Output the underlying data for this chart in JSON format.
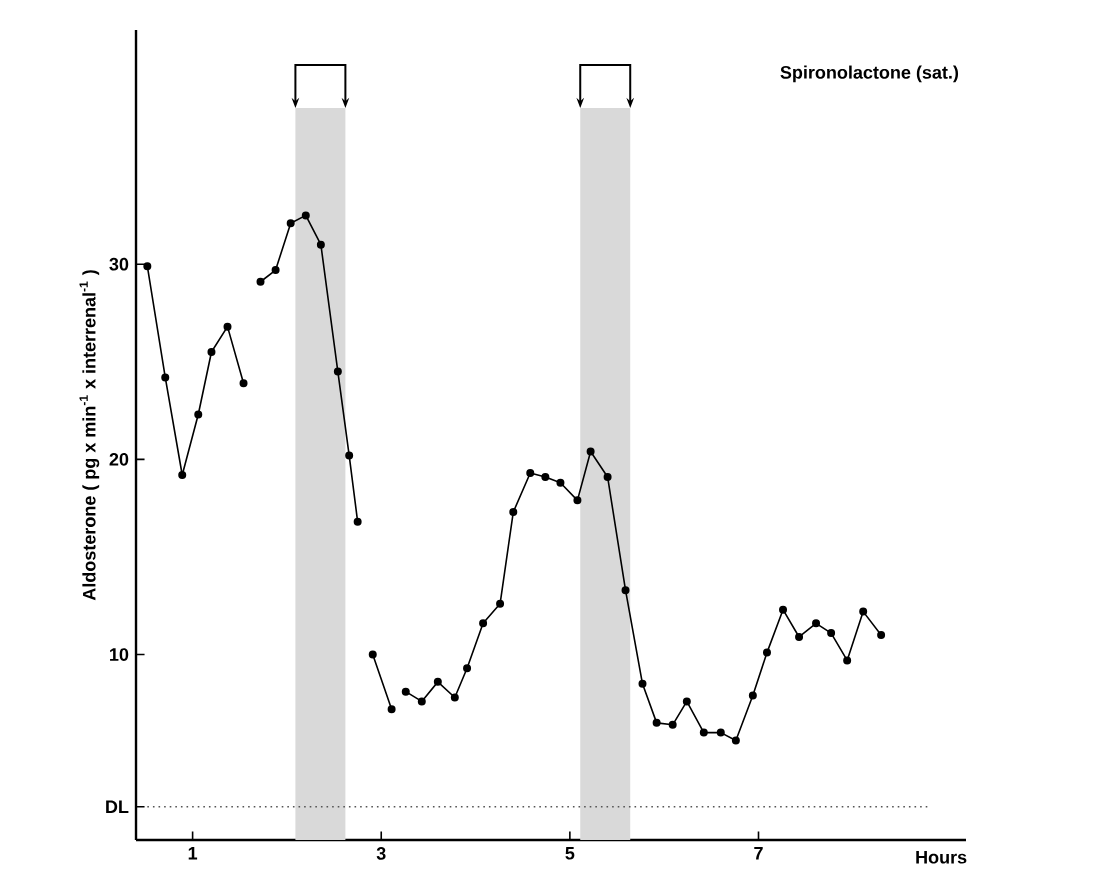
{
  "chart_data": {
    "type": "line",
    "title": "Spironolactone (sat.)",
    "xlabel": "Hours",
    "ylabel": "Aldosterone ( pg x min$^{-1}$ x interrenal$^{-1}$ )",
    "series": [
      {
        "color": "#000000",
        "x": [
          0.52,
          0.71,
          0.89,
          1.06,
          1.2,
          1.37,
          1.54,
          1.63,
          1.72,
          1.88,
          2.04,
          2.2,
          2.36,
          2.54,
          2.66,
          2.75,
          2.83,
          2.91,
          3.11,
          3.18,
          3.26,
          3.43,
          3.6,
          3.78,
          3.91,
          4.08,
          4.26,
          4.4,
          4.58,
          4.74,
          4.9,
          5.08,
          5.22,
          5.4,
          5.59,
          5.77,
          5.92,
          6.09,
          6.24,
          6.42,
          6.6,
          6.76,
          6.94,
          7.09,
          7.26,
          7.43,
          7.61,
          7.77,
          7.94,
          8.11,
          8.3
        ],
        "values": [
          29.9,
          24.2,
          19.2,
          22.3,
          25.5,
          26.8,
          23.9,
          null,
          29.1,
          29.7,
          32.1,
          32.5,
          31.0,
          24.5,
          20.2,
          16.8,
          null,
          10.0,
          7.2,
          null,
          8.1,
          7.6,
          8.6,
          7.8,
          9.3,
          11.6,
          12.6,
          17.3,
          19.3,
          19.1,
          18.8,
          17.9,
          20.4,
          19.1,
          13.3,
          8.5,
          6.5,
          6.4,
          7.6,
          6.0,
          6.0,
          5.6,
          7.9,
          10.1,
          12.3,
          10.9,
          11.6,
          11.1,
          9.7,
          12.2,
          11.0
        ]
      }
    ],
    "xlim": [
      0.4,
      9.2
    ],
    "ylim": [
      0.5,
      42
    ],
    "xticks": [
      1,
      3,
      5,
      7
    ],
    "yticks": [
      {
        "value": 2.2,
        "label": "DL"
      },
      10,
      20,
      30
    ],
    "ref_lines": [
      {
        "axis": "y",
        "value": 2.2,
        "line_style": "dotted",
        "color": "#555555"
      }
    ],
    "bands": [
      {
        "axis": "x",
        "from": 2.09,
        "to": 2.62,
        "color": "#d9d9d9"
      },
      {
        "axis": "x",
        "from": 5.11,
        "to": 5.64,
        "color": "#d9d9d9"
      }
    ],
    "marker": "circle",
    "line_style": "solid"
  }
}
